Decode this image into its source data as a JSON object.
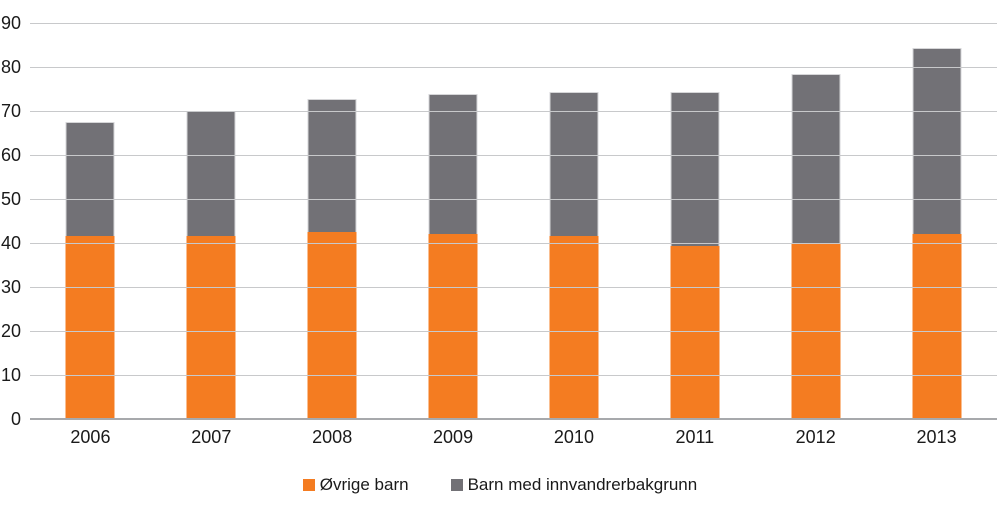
{
  "chart_data": {
    "type": "bar",
    "stacked": true,
    "title": "",
    "xlabel": "",
    "ylabel": "",
    "categories": [
      "2006",
      "2007",
      "2008",
      "2009",
      "2010",
      "2011",
      "2012",
      "2013"
    ],
    "series": [
      {
        "name": "Øvrige barn",
        "color": "#f47c21",
        "values": [
          41.5,
          41.5,
          42.5,
          42.0,
          41.5,
          39.4,
          39.9,
          42.0
        ]
      },
      {
        "name": "Barn med innvandrerbakgrunn",
        "color": "#727176",
        "values": [
          26.0,
          28.5,
          30.2,
          31.8,
          32.8,
          34.9,
          38.5,
          42.4
        ]
      }
    ],
    "totals": [
      67.5,
      70.0,
      72.7,
      73.8,
      74.3,
      74.3,
      78.4,
      84.4
    ],
    "ylim": [
      0,
      90
    ],
    "yticks": [
      0,
      10,
      20,
      30,
      40,
      50,
      60,
      70,
      80,
      90
    ],
    "grid": true,
    "grid_color": "#c8c9cb",
    "axis_color": "#a7a9ac",
    "text_color": "#1a1a1a",
    "background_color": "#ffffff",
    "legend_position": "bottom"
  }
}
